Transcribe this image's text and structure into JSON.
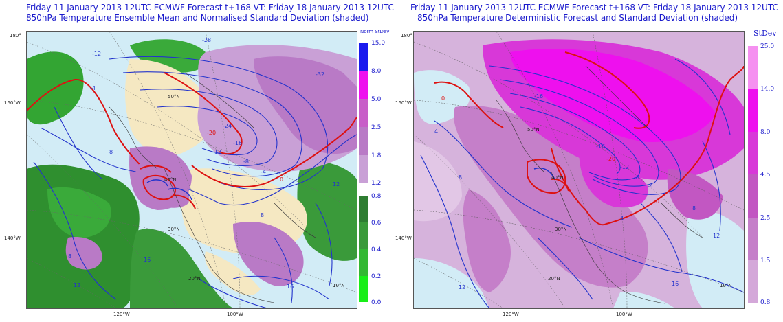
{
  "left_panel": {
    "title_line1": "Friday 11 January 2013 12UTC ECMWF Forecast t+168  VT: Friday 18 January 2013 12UTC",
    "title_line2": "850hPa Temperature Ensemble Mean and Normalised Standard Deviation (shaded)",
    "lon_labels": {
      "top_left": "180°",
      "mid_left": "160°W",
      "low_left": "140°W",
      "bottom_a": "120°W",
      "bottom_b": "100°W"
    },
    "lat_labels": {
      "lat50": "50°N",
      "lat40": "40°N",
      "lat30": "30°N",
      "lat20": "20°N",
      "lat10": "10°N"
    },
    "contour_labels": [
      "-24",
      "-20",
      "-16",
      "-12",
      "-8",
      "-4",
      "0",
      "4",
      "8",
      "12",
      "16",
      "-28",
      "-32"
    ],
    "legend": {
      "title": "Norm StDev",
      "upper_ticks": [
        "15.0",
        "8.0",
        "5.0",
        "2.5",
        "1.8",
        "1.2"
      ],
      "lower_ticks": [
        "0.8",
        "0.6",
        "0.4",
        "0.2",
        "0.0"
      ],
      "upper_colors": [
        "#1a1aee",
        "#ee10ee",
        "#c85ec8",
        "#b97ac6",
        "#c9a0d6"
      ],
      "lower_colors": [
        "#2e7d32",
        "#3a9a3a",
        "#33b833",
        "#22d122",
        "#18ee18"
      ]
    }
  },
  "right_panel": {
    "title_line1": "Friday 11 January 2013 12UTC ECMWF Forecast t+168  VT: Friday 18 January 2013 12UTC",
    "title_line2": "850hPa Temperature Deterministic Forecast and Standard Deviation (shaded)",
    "lon_labels": {
      "top_left": "180°",
      "mid_left": "160°W",
      "low_left": "140°W",
      "bottom_a": "120°W",
      "bottom_b": "100°W"
    },
    "lat_labels": {
      "lat50": "50°N",
      "lat40": "40°N",
      "lat30": "30°N",
      "lat20": "20°N",
      "lat10": "10°N"
    },
    "contour_labels": [
      "-20",
      "-16",
      "-12",
      "-8",
      "-4",
      "0",
      "4",
      "8",
      "12",
      "16"
    ],
    "legend": {
      "title": "StDev",
      "ticks": [
        "25.0",
        "14.0",
        "8.0",
        "4.5",
        "2.5",
        "1.5",
        "0.8"
      ],
      "colors": [
        "#f590f0",
        "#ee10ee",
        "#d838d8",
        "#c257c2",
        "#c57fc9",
        "#d4a8d9"
      ]
    }
  }
}
